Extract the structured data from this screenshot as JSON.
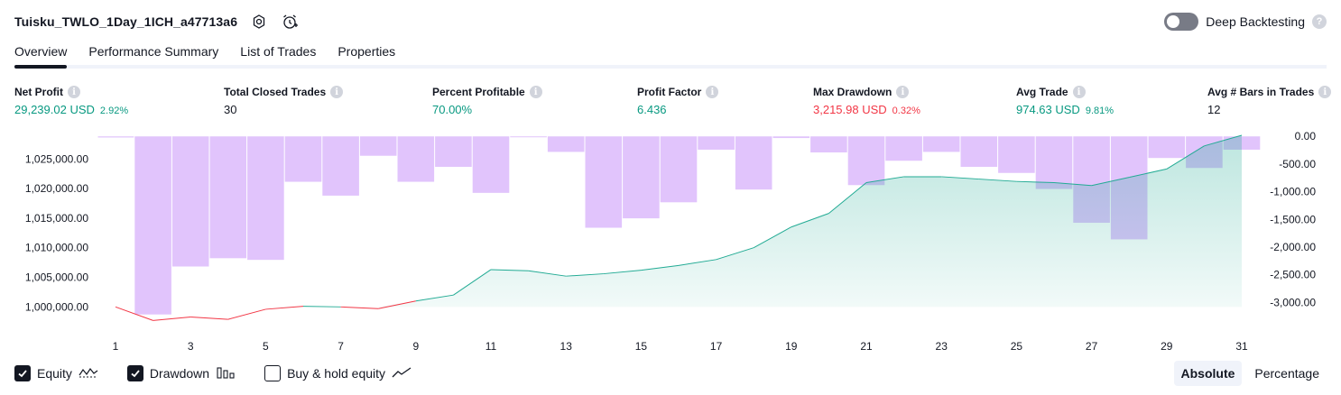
{
  "header": {
    "title": "Tuisku_TWLO_1Day_1ICH_a47713a6",
    "deep_backtesting_label": "Deep Backtesting",
    "deep_backtesting_enabled": false,
    "help_glyph": "?"
  },
  "tabs": [
    {
      "label": "Overview",
      "active": true
    },
    {
      "label": "Performance Summary",
      "active": false
    },
    {
      "label": "List of Trades",
      "active": false
    },
    {
      "label": "Properties",
      "active": false
    }
  ],
  "info_glyph": "i",
  "stats": {
    "net_profit": {
      "label": "Net Profit",
      "value": "29,239.02 USD",
      "pct": "2.92%"
    },
    "total_closed_trades": {
      "label": "Total Closed Trades",
      "value": "30"
    },
    "percent_profitable": {
      "label": "Percent Profitable",
      "value": "70.00%"
    },
    "profit_factor": {
      "label": "Profit Factor",
      "value": "6.436"
    },
    "max_drawdown": {
      "label": "Max Drawdown",
      "value": "3,215.98 USD",
      "pct": "0.32%"
    },
    "avg_trade": {
      "label": "Avg Trade",
      "value": "974.63 USD",
      "pct": "9.81%"
    },
    "avg_bars": {
      "label": "Avg # Bars in Trades",
      "value": "12"
    }
  },
  "colors": {
    "green": "#089981",
    "red": "#f23645",
    "drawdown_bar": "#e1c4fc",
    "equity_line": "#22ab94",
    "equity_fill": "#cfeee7",
    "buyhold_line": "#3c78d8"
  },
  "chart_data": {
    "type": "area",
    "x_ticks": [
      "1",
      "3",
      "5",
      "7",
      "9",
      "11",
      "13",
      "15",
      "17",
      "19",
      "21",
      "23",
      "25",
      "27",
      "29",
      "31"
    ],
    "left_axis": {
      "ticks": [
        "1,025,000.00",
        "1,020,000.00",
        "1,015,000.00",
        "1,010,000.00",
        "1,005,000.00",
        "1,000,000.00"
      ],
      "values": [
        1025000,
        1020000,
        1015000,
        1010000,
        1005000,
        1000000
      ],
      "range": [
        997000,
        1029000
      ]
    },
    "right_axis": {
      "ticks": [
        "0.00",
        "-500.00",
        "-1,000.00",
        "-1,500.00",
        "-2,000.00",
        "-2,500.00",
        "-3,000.00"
      ],
      "values": [
        0,
        -500,
        -1000,
        -1500,
        -2000,
        -2500,
        -3000
      ],
      "range": [
        -3400,
        20
      ]
    },
    "series": [
      {
        "name": "Equity",
        "x": [
          1,
          2,
          3,
          4,
          5,
          6,
          7,
          8,
          9,
          10,
          11,
          12,
          13,
          14,
          15,
          16,
          17,
          18,
          19,
          20,
          21,
          22,
          23,
          24,
          25,
          26,
          27,
          28,
          29,
          30,
          31
        ],
        "values": [
          1000000,
          997700,
          998300,
          997900,
          999600,
          1000100,
          1000000,
          999700,
          1001000,
          1002000,
          1006300,
          1006100,
          1005200,
          1005600,
          1006200,
          1007000,
          1008000,
          1010000,
          1013500,
          1015800,
          1021000,
          1022000,
          1022000,
          1021600,
          1021200,
          1021000,
          1020500,
          1021900,
          1023300,
          1027200,
          1029000
        ]
      },
      {
        "name": "Drawdown",
        "x": [
          1,
          2,
          3,
          4,
          5,
          6,
          7,
          8,
          9,
          10,
          11,
          12,
          13,
          14,
          15,
          16,
          17,
          18,
          19,
          20,
          21,
          22,
          23,
          24,
          25,
          26,
          27,
          28,
          29,
          30,
          31
        ],
        "values": [
          -20,
          -3215.98,
          -2350,
          -2200,
          -2230,
          -820,
          -1070,
          -350,
          -820,
          -550,
          -1020,
          0,
          -280,
          -1650,
          -1480,
          -1190,
          -240,
          -960,
          -30,
          -290,
          -880,
          -440,
          -280,
          -550,
          -660,
          -950,
          -1560,
          -1860,
          -390,
          -570,
          -240
        ]
      },
      {
        "name": "Buy & hold equity",
        "x": [
          27,
          28,
          29,
          30,
          31
        ],
        "values": [
          1020500,
          1021900,
          1023300,
          1027200,
          1029000
        ],
        "visible": false
      }
    ]
  },
  "legend": [
    {
      "label": "Equity",
      "checked": true,
      "icon": "equity-wave-icon"
    },
    {
      "label": "Drawdown",
      "checked": true,
      "icon": "drawdown-bars-icon"
    },
    {
      "label": "Buy & hold equity",
      "checked": false,
      "icon": "buyhold-line-icon"
    }
  ],
  "modes": [
    {
      "label": "Absolute",
      "active": true
    },
    {
      "label": "Percentage",
      "active": false
    }
  ]
}
